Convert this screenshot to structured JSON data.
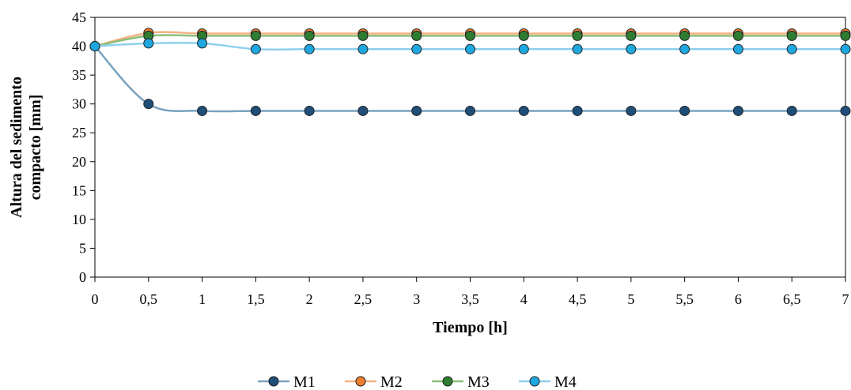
{
  "chart_data": {
    "type": "line",
    "title": "",
    "xlabel": "Tiempo [h]",
    "ylabel_lines": [
      "Altura del sedimento",
      "compacto [mm]"
    ],
    "x": [
      0,
      0.5,
      1,
      1.5,
      2,
      2.5,
      3,
      3.5,
      4,
      4.5,
      5,
      5.5,
      6,
      6.5,
      7
    ],
    "x_tick_labels": [
      "0",
      "0,5",
      "1",
      "1,5",
      "2",
      "2,5",
      "3",
      "3,5",
      "4",
      "4,5",
      "5",
      "5,5",
      "6",
      "6,5",
      "7"
    ],
    "y_tick_labels": [
      "0",
      "5",
      "10",
      "15",
      "20",
      "25",
      "30",
      "35",
      "40",
      "45"
    ],
    "xlim": [
      0,
      7
    ],
    "ylim": [
      0,
      45
    ],
    "grid": false,
    "legend_position": "bottom",
    "series": [
      {
        "name": "M1",
        "line_color": "#7aa3bf",
        "marker_color": "#1f4e79",
        "values": [
          40,
          30,
          28.8,
          28.8,
          28.8,
          28.8,
          28.8,
          28.8,
          28.8,
          28.8,
          28.8,
          28.8,
          28.8,
          28.8,
          28.8
        ]
      },
      {
        "name": "M2",
        "line_color": "#f4b183",
        "marker_color": "#ed7d31",
        "values": [
          40,
          42.3,
          42.2,
          42.2,
          42.2,
          42.2,
          42.2,
          42.2,
          42.2,
          42.2,
          42.2,
          42.2,
          42.2,
          42.2,
          42.2
        ]
      },
      {
        "name": "M3",
        "line_color": "#8cbf7a",
        "marker_color": "#2e7d32",
        "values": [
          40,
          41.8,
          41.8,
          41.8,
          41.8,
          41.8,
          41.8,
          41.8,
          41.8,
          41.8,
          41.8,
          41.8,
          41.8,
          41.8,
          41.8
        ]
      },
      {
        "name": "M4",
        "line_color": "#8fd0ee",
        "marker_color": "#1fa7e0",
        "values": [
          40,
          40.5,
          40.5,
          39.5,
          39.5,
          39.5,
          39.5,
          39.5,
          39.5,
          39.5,
          39.5,
          39.5,
          39.5,
          39.5,
          39.5
        ]
      }
    ]
  }
}
